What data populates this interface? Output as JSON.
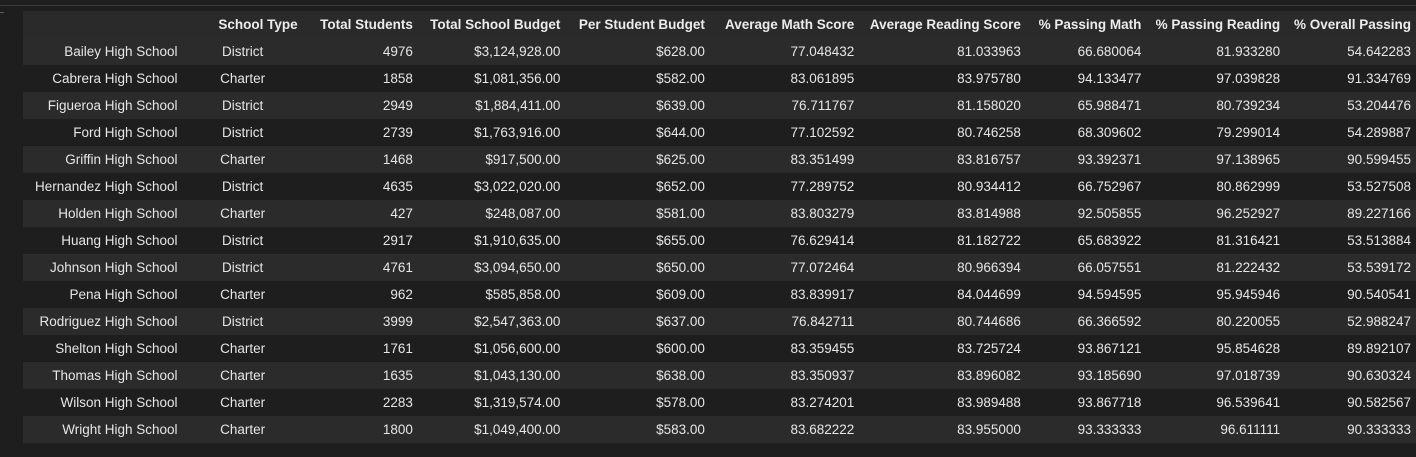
{
  "table": {
    "columns": [
      "School Type",
      "Total Students",
      "Total School Budget",
      "Per Student Budget",
      "Average Math Score",
      "Average Reading Score",
      "% Passing Math",
      "% Passing Reading",
      "% Overall Passing"
    ],
    "rows": [
      {
        "name": "Bailey High School",
        "cells": [
          "District",
          "4976",
          "$3,124,928.00",
          "$628.00",
          "77.048432",
          "81.033963",
          "66.680064",
          "81.933280",
          "54.642283"
        ]
      },
      {
        "name": "Cabrera High School",
        "cells": [
          "Charter",
          "1858",
          "$1,081,356.00",
          "$582.00",
          "83.061895",
          "83.975780",
          "94.133477",
          "97.039828",
          "91.334769"
        ]
      },
      {
        "name": "Figueroa High School",
        "cells": [
          "District",
          "2949",
          "$1,884,411.00",
          "$639.00",
          "76.711767",
          "81.158020",
          "65.988471",
          "80.739234",
          "53.204476"
        ]
      },
      {
        "name": "Ford High School",
        "cells": [
          "District",
          "2739",
          "$1,763,916.00",
          "$644.00",
          "77.102592",
          "80.746258",
          "68.309602",
          "79.299014",
          "54.289887"
        ]
      },
      {
        "name": "Griffin High School",
        "cells": [
          "Charter",
          "1468",
          "$917,500.00",
          "$625.00",
          "83.351499",
          "83.816757",
          "93.392371",
          "97.138965",
          "90.599455"
        ]
      },
      {
        "name": "Hernandez High School",
        "cells": [
          "District",
          "4635",
          "$3,022,020.00",
          "$652.00",
          "77.289752",
          "80.934412",
          "66.752967",
          "80.862999",
          "53.527508"
        ]
      },
      {
        "name": "Holden High School",
        "cells": [
          "Charter",
          "427",
          "$248,087.00",
          "$581.00",
          "83.803279",
          "83.814988",
          "92.505855",
          "96.252927",
          "89.227166"
        ]
      },
      {
        "name": "Huang High School",
        "cells": [
          "District",
          "2917",
          "$1,910,635.00",
          "$655.00",
          "76.629414",
          "81.182722",
          "65.683922",
          "81.316421",
          "53.513884"
        ]
      },
      {
        "name": "Johnson High School",
        "cells": [
          "District",
          "4761",
          "$3,094,650.00",
          "$650.00",
          "77.072464",
          "80.966394",
          "66.057551",
          "81.222432",
          "53.539172"
        ]
      },
      {
        "name": "Pena High School",
        "cells": [
          "Charter",
          "962",
          "$585,858.00",
          "$609.00",
          "83.839917",
          "84.044699",
          "94.594595",
          "95.945946",
          "90.540541"
        ]
      },
      {
        "name": "Rodriguez High School",
        "cells": [
          "District",
          "3999",
          "$2,547,363.00",
          "$637.00",
          "76.842711",
          "80.744686",
          "66.366592",
          "80.220055",
          "52.988247"
        ]
      },
      {
        "name": "Shelton High School",
        "cells": [
          "Charter",
          "1761",
          "$1,056,600.00",
          "$600.00",
          "83.359455",
          "83.725724",
          "93.867121",
          "95.854628",
          "89.892107"
        ]
      },
      {
        "name": "Thomas High School",
        "cells": [
          "Charter",
          "1635",
          "$1,043,130.00",
          "$638.00",
          "83.350937",
          "83.896082",
          "93.185690",
          "97.018739",
          "90.630324"
        ]
      },
      {
        "name": "Wilson High School",
        "cells": [
          "Charter",
          "2283",
          "$1,319,574.00",
          "$578.00",
          "83.274201",
          "83.989488",
          "93.867718",
          "96.539641",
          "90.582567"
        ]
      },
      {
        "name": "Wright High School",
        "cells": [
          "Charter",
          "1800",
          "$1,049,400.00",
          "$583.00",
          "83.682222",
          "83.955000",
          "93.333333",
          "96.611111",
          "90.333333"
        ]
      }
    ]
  }
}
